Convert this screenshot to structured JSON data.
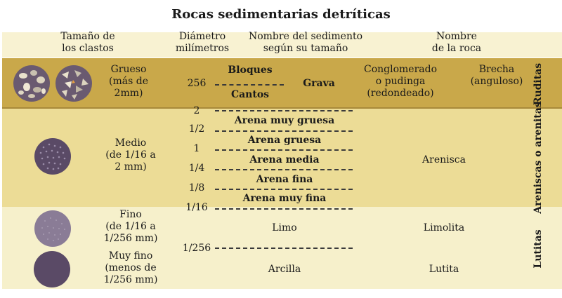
{
  "title": "Rocas sedimentarias detríticas",
  "headers": {
    "size": "Tamaño de\nlos clastos",
    "diameter": "Diámetro\nmilímetros",
    "sediment": "Nombre del sedimento\nsegún su tamaño",
    "rock": "Nombre\nde la roca"
  },
  "groups": {
    "rudites": {
      "size": "Grueso\n(más de\n2mm)",
      "sediments": {
        "bloques": "Bloques",
        "cantos": "Cantos",
        "grava": "Grava"
      },
      "rocks": {
        "conglomerado": "Conglomerado\no pudinga\n(redondeado)",
        "brecha": "Brecha\n(anguloso)"
      },
      "label": "Ruditas"
    },
    "arenites": {
      "size": "Medio\n(de 1/16 a\n2 mm)",
      "sediments": [
        "Arena muy gruesa",
        "Arena gruesa",
        "Arena media",
        "Arena fina",
        "Arena muy fina"
      ],
      "rock": "Arenisca",
      "label": "Areniscas o arenitas"
    },
    "lutites": {
      "fine_size": "Fino\n(de 1/16 a\n1/256 mm)",
      "very_fine_size": "Muy fino\n(menos de\n1/256 mm)",
      "limo": "Limo",
      "arcilla": "Arcilla",
      "limolita": "Limolita",
      "lutita": "Lutita",
      "label": "Lutitas"
    }
  },
  "diameters": [
    "256",
    "2",
    "1/2",
    "1",
    "1/4",
    "1/8",
    "1/16",
    "1/256"
  ],
  "colors": {
    "rudites_band": "#c9a84a",
    "arenites_band": "#ecdc96",
    "lutites_band": "#f6f0cb",
    "header_band": "#f8f2d2",
    "dash": "#3a3a3a",
    "dark_purple": "#5a4a66"
  }
}
